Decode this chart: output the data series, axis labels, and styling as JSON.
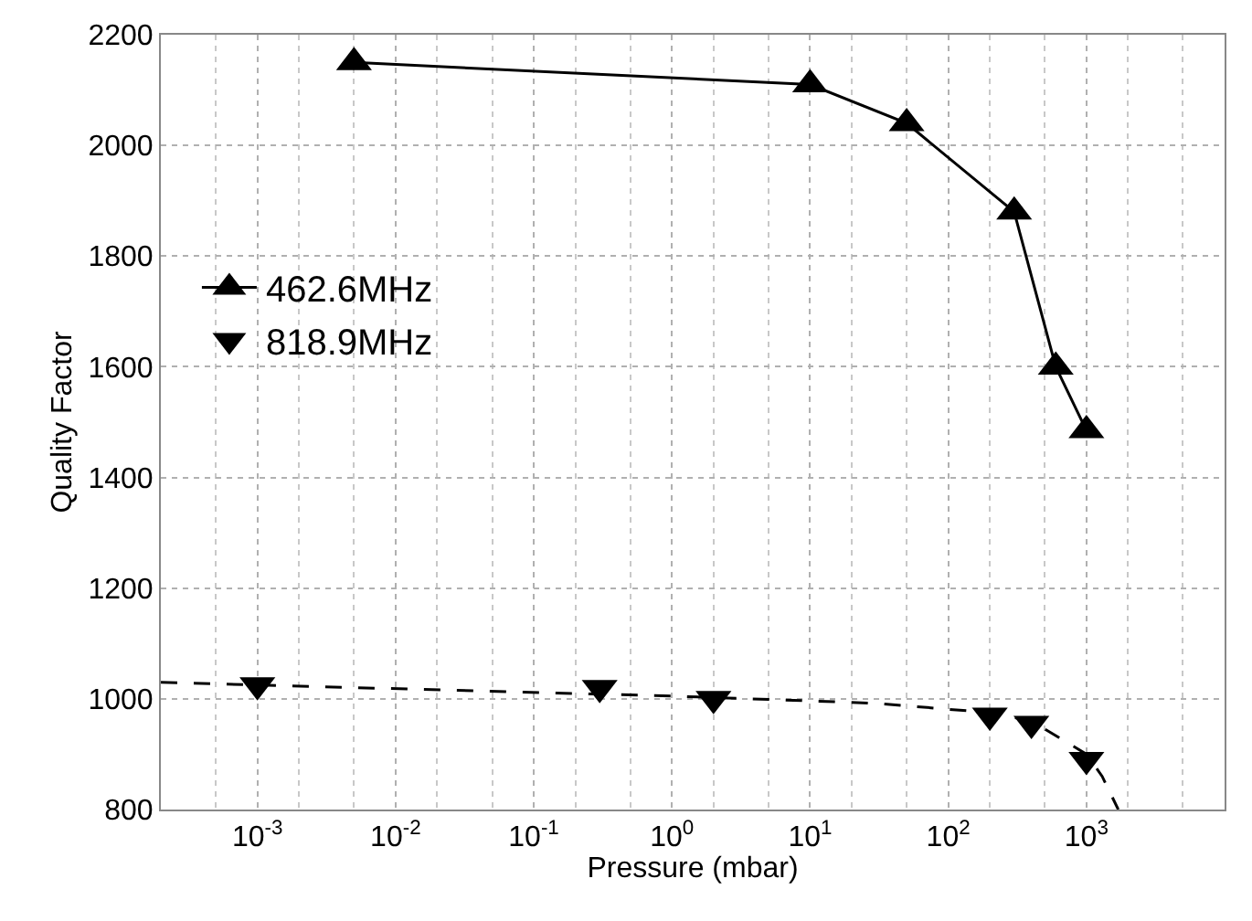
{
  "chart_data": {
    "type": "line",
    "xlabel": "Pressure (mbar)",
    "ylabel": "Quality Factor",
    "log": "x",
    "xlim": [
      0.0002,
      10000
    ],
    "ylim": [
      800,
      2200
    ],
    "xticks": [
      {
        "value": 0.001,
        "label": "10$^{-3}$"
      },
      {
        "value": 0.01,
        "label": "10$^{-2}$"
      },
      {
        "value": 0.1,
        "label": "10$^{-1}$"
      },
      {
        "value": 1,
        "label": "10$^{0}$"
      },
      {
        "value": 10,
        "label": "10$^{1}$"
      },
      {
        "value": 100,
        "label": "10$^{2}$"
      },
      {
        "value": 1000,
        "label": "10$^{3}$"
      }
    ],
    "yticks": [
      800,
      1000,
      1200,
      1400,
      1600,
      1800,
      2000,
      2200
    ],
    "grid": true,
    "legend": "left",
    "series": [
      {
        "name": "462.6MHz",
        "color": "#000000",
        "marker": "triangle",
        "line_style": "solid",
        "x": [
          0.005,
          10,
          50,
          300,
          600,
          1000
        ],
        "values": [
          2150,
          2110,
          2040,
          1880,
          1600,
          1485
        ]
      },
      {
        "name": "818.9MHz",
        "color": "#000000",
        "type": "scatter",
        "marker": "triangle-down",
        "x": [
          0.001,
          0.3,
          2,
          200,
          400,
          1000
        ],
        "values": [
          1025,
          1020,
          1000,
          970,
          955,
          890
        ]
      },
      {
        "color": "#000000",
        "marker": "none",
        "line_style": "dashed",
        "x": [
          0.0002,
          0.001,
          1,
          30,
          200,
          400,
          1000,
          1300,
          1700
        ],
        "values": [
          1030,
          1025,
          1005,
          992,
          975,
          960,
          900,
          860,
          800
        ]
      }
    ]
  }
}
